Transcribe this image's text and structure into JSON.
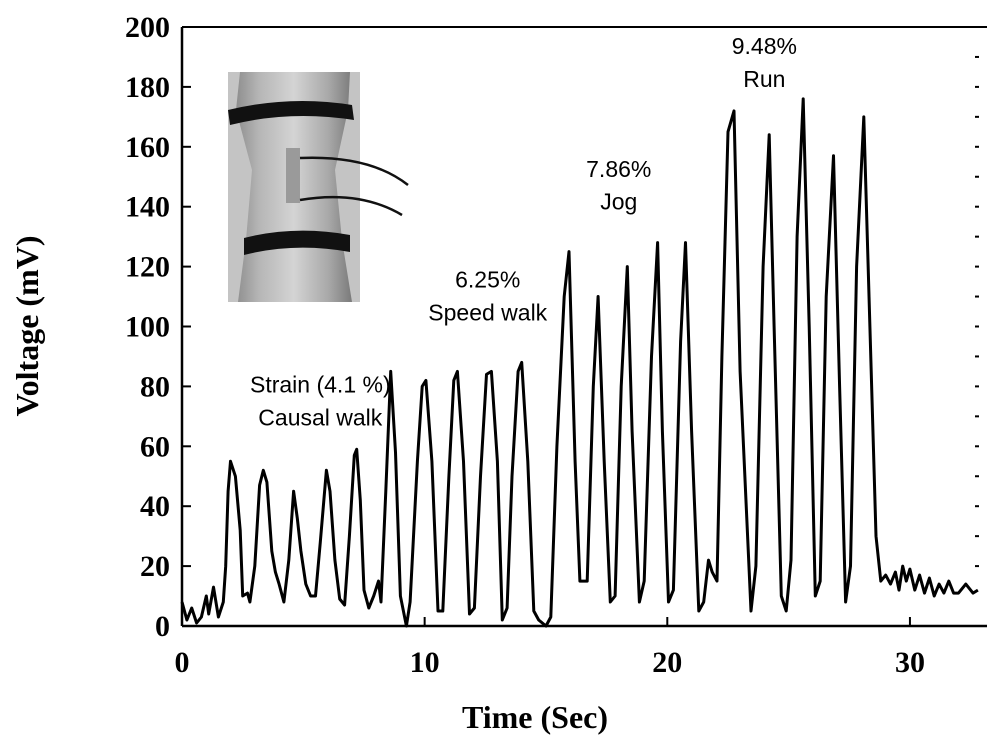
{
  "chart_data": {
    "type": "line",
    "title": "",
    "xlabel": "Time (Sec)",
    "ylabel": "Voltage (mV)",
    "xlim": [
      0,
      34
    ],
    "ylim": [
      0,
      200
    ],
    "x_ticks": [
      0,
      10,
      20,
      30
    ],
    "y_ticks": [
      0,
      20,
      40,
      60,
      80,
      100,
      120,
      140,
      160,
      180,
      200
    ],
    "grid": false,
    "legend": "none",
    "line_color": "#000000",
    "series": [
      {
        "name": "",
        "points": [
          [
            0.0,
            8
          ],
          [
            0.2,
            2
          ],
          [
            0.4,
            6
          ],
          [
            0.6,
            1
          ],
          [
            0.8,
            3
          ],
          [
            1.0,
            10
          ],
          [
            1.1,
            4
          ],
          [
            1.3,
            13
          ],
          [
            1.5,
            3
          ],
          [
            1.7,
            8
          ],
          [
            1.8,
            20
          ],
          [
            1.9,
            45
          ],
          [
            2.0,
            55
          ],
          [
            2.2,
            50
          ],
          [
            2.4,
            32
          ],
          [
            2.5,
            10
          ],
          [
            2.7,
            11
          ],
          [
            2.8,
            8
          ],
          [
            3.0,
            20
          ],
          [
            3.2,
            47
          ],
          [
            3.35,
            52
          ],
          [
            3.5,
            48
          ],
          [
            3.7,
            25
          ],
          [
            3.85,
            18
          ],
          [
            4.0,
            14
          ],
          [
            4.2,
            8
          ],
          [
            4.4,
            22
          ],
          [
            4.6,
            45
          ],
          [
            4.75,
            36
          ],
          [
            4.9,
            25
          ],
          [
            5.1,
            14
          ],
          [
            5.3,
            10
          ],
          [
            5.5,
            10
          ],
          [
            5.7,
            28
          ],
          [
            5.95,
            52
          ],
          [
            6.1,
            45
          ],
          [
            6.3,
            22
          ],
          [
            6.5,
            9
          ],
          [
            6.7,
            7
          ],
          [
            6.9,
            30
          ],
          [
            7.1,
            57
          ],
          [
            7.2,
            59
          ],
          [
            7.35,
            42
          ],
          [
            7.5,
            12
          ],
          [
            7.7,
            6
          ],
          [
            7.9,
            10
          ],
          [
            8.1,
            15
          ],
          [
            8.2,
            8
          ],
          [
            8.4,
            45
          ],
          [
            8.6,
            85
          ],
          [
            8.8,
            58
          ],
          [
            9.0,
            10
          ],
          [
            9.25,
            0
          ],
          [
            9.4,
            8
          ],
          [
            9.7,
            55
          ],
          [
            9.9,
            80
          ],
          [
            10.05,
            82
          ],
          [
            10.3,
            55
          ],
          [
            10.55,
            5
          ],
          [
            10.75,
            5
          ],
          [
            11.0,
            50
          ],
          [
            11.2,
            82
          ],
          [
            11.35,
            85
          ],
          [
            11.6,
            55
          ],
          [
            11.85,
            4
          ],
          [
            12.05,
            6
          ],
          [
            12.3,
            50
          ],
          [
            12.55,
            84
          ],
          [
            12.75,
            85
          ],
          [
            13.0,
            55
          ],
          [
            13.2,
            2
          ],
          [
            13.4,
            6
          ],
          [
            13.6,
            50
          ],
          [
            13.85,
            85
          ],
          [
            14.0,
            88
          ],
          [
            14.25,
            55
          ],
          [
            14.5,
            5
          ],
          [
            14.7,
            2
          ],
          [
            15.0,
            0
          ],
          [
            15.2,
            3
          ],
          [
            15.45,
            60
          ],
          [
            15.75,
            110
          ],
          [
            15.95,
            125
          ],
          [
            16.2,
            55
          ],
          [
            16.4,
            15
          ],
          [
            16.7,
            15
          ],
          [
            16.95,
            80
          ],
          [
            17.15,
            110
          ],
          [
            17.4,
            55
          ],
          [
            17.65,
            8
          ],
          [
            17.85,
            10
          ],
          [
            18.1,
            80
          ],
          [
            18.35,
            120
          ],
          [
            18.55,
            65
          ],
          [
            18.85,
            8
          ],
          [
            19.05,
            15
          ],
          [
            19.35,
            90
          ],
          [
            19.6,
            128
          ],
          [
            19.8,
            65
          ],
          [
            20.05,
            8
          ],
          [
            20.25,
            12
          ],
          [
            20.55,
            95
          ],
          [
            20.75,
            128
          ],
          [
            21.0,
            65
          ],
          [
            21.3,
            5
          ],
          [
            21.5,
            8
          ],
          [
            21.7,
            22
          ],
          [
            21.85,
            18
          ],
          [
            22.05,
            15
          ],
          [
            22.25,
            90
          ],
          [
            22.5,
            165
          ],
          [
            22.75,
            172
          ],
          [
            23.0,
            85
          ],
          [
            23.45,
            5
          ],
          [
            23.65,
            20
          ],
          [
            23.95,
            120
          ],
          [
            24.2,
            164
          ],
          [
            24.4,
            100
          ],
          [
            24.7,
            10
          ],
          [
            24.9,
            5
          ],
          [
            25.1,
            22
          ],
          [
            25.35,
            130
          ],
          [
            25.6,
            176
          ],
          [
            25.85,
            100
          ],
          [
            26.1,
            10
          ],
          [
            26.3,
            15
          ],
          [
            26.55,
            110
          ],
          [
            26.85,
            157
          ],
          [
            27.1,
            80
          ],
          [
            27.35,
            8
          ],
          [
            27.55,
            20
          ],
          [
            27.8,
            120
          ],
          [
            28.1,
            170
          ],
          [
            28.35,
            100
          ],
          [
            28.6,
            30
          ],
          [
            28.8,
            15
          ],
          [
            29.0,
            17
          ],
          [
            29.2,
            14
          ],
          [
            29.4,
            18
          ],
          [
            29.55,
            12
          ],
          [
            29.7,
            20
          ],
          [
            29.85,
            15
          ],
          [
            30.0,
            19
          ],
          [
            30.2,
            12
          ],
          [
            30.4,
            17
          ],
          [
            30.6,
            11
          ],
          [
            30.8,
            16
          ],
          [
            31.0,
            10
          ],
          [
            31.2,
            14
          ],
          [
            31.4,
            11
          ],
          [
            31.6,
            15
          ],
          [
            31.8,
            11
          ],
          [
            32.0,
            11
          ],
          [
            32.3,
            14
          ],
          [
            32.6,
            11
          ],
          [
            32.8,
            12
          ]
        ]
      }
    ],
    "annotations": [
      {
        "text": "Strain (4.1 %)",
        "x": 5.7,
        "y": 78
      },
      {
        "text": "Causal walk",
        "x": 5.7,
        "y": 67
      },
      {
        "text": "6.25%",
        "x": 12.6,
        "y": 113
      },
      {
        "text": "Speed walk",
        "x": 12.6,
        "y": 102
      },
      {
        "text": "7.86%",
        "x": 18.0,
        "y": 150
      },
      {
        "text": "Jog",
        "x": 18.0,
        "y": 139
      },
      {
        "text": "9.48%",
        "x": 24.0,
        "y": 191
      },
      {
        "text": "Run",
        "x": 24.0,
        "y": 180
      }
    ]
  }
}
